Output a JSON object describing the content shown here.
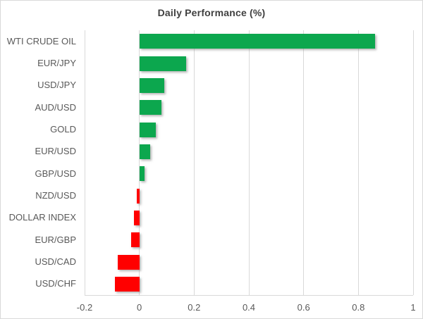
{
  "chart": {
    "title": "Daily Performance (%)"
  },
  "chart_data": {
    "type": "bar",
    "orientation": "horizontal",
    "title": "Daily Performance (%)",
    "categories": [
      "WTI CRUDE OIL",
      "EUR/JPY",
      "USD/JPY",
      "AUD/USD",
      "GOLD",
      "EUR/USD",
      "GBP/USD",
      "NZD/USD",
      "DOLLAR INDEX",
      "EUR/GBP",
      "USD/CAD",
      "USD/CHF"
    ],
    "values": [
      0.86,
      0.17,
      0.09,
      0.08,
      0.06,
      0.04,
      0.02,
      -0.01,
      -0.02,
      -0.03,
      -0.08,
      -0.09
    ],
    "xlabel": "",
    "ylabel": "",
    "xlim": [
      -0.2,
      1.0
    ],
    "x_ticks": [
      -0.2,
      0,
      0.2,
      0.4,
      0.6,
      0.8,
      1
    ],
    "x_tick_labels": [
      "-0.2",
      "0",
      "0.2",
      "0.4",
      "0.6",
      "0.8",
      "1"
    ],
    "grid": true,
    "legend": false,
    "colors": {
      "positive_bar": "#0ca74e",
      "negative_bar": "#ff0000",
      "gridline": "#d9d9d9",
      "title_text": "#404040",
      "axis_text": "#595959",
      "background": "#ffffff",
      "border": "#d9d9d9"
    }
  }
}
